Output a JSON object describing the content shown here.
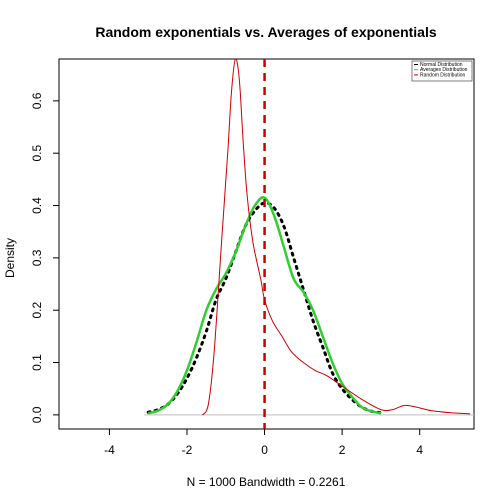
{
  "chart_data": {
    "type": "line",
    "title": "Random exponentials vs. Averages of exponentials",
    "xlabel": "N = 1000   Bandwidth = 0.2261",
    "ylabel": "Density",
    "xlim": [
      -5.3,
      5.4
    ],
    "ylim": [
      -0.027,
      0.68
    ],
    "xticks": [
      "-4",
      "-2",
      "0",
      "2",
      "4"
    ],
    "xtick_values": [
      -4,
      -2,
      0,
      2,
      4
    ],
    "yticks": [
      "0.0",
      "0.1",
      "0.2",
      "0.3",
      "0.4",
      "0.5",
      "0.6"
    ],
    "ytick_values": [
      0,
      0.1,
      0.2,
      0.3,
      0.4,
      0.5,
      0.6
    ],
    "legend_position": "top-right",
    "legend": [
      {
        "label": "Normal Distribution",
        "color": "#000000"
      },
      {
        "label": "Averages Distribution",
        "color": "#32cd32"
      },
      {
        "label": "Random Distribution",
        "color": "#cc0000"
      }
    ],
    "vline": {
      "x": 0,
      "color": "#cc0000",
      "style": "dashed"
    },
    "series": [
      {
        "color": "#000000",
        "style": "dotted",
        "x": [
          -3.0,
          -2.75,
          -2.5,
          -2.25,
          -2.0,
          -1.75,
          -1.5,
          -1.25,
          -1.0,
          -0.75,
          -0.5,
          -0.25,
          0.0,
          0.25,
          0.5,
          0.75,
          1.0,
          1.25,
          1.5,
          1.75,
          2.0,
          2.25,
          2.5,
          2.75,
          3.0
        ],
        "y": [
          0.005,
          0.01,
          0.02,
          0.04,
          0.07,
          0.11,
          0.16,
          0.22,
          0.26,
          0.31,
          0.36,
          0.39,
          0.405,
          0.395,
          0.36,
          0.3,
          0.24,
          0.18,
          0.13,
          0.08,
          0.05,
          0.03,
          0.015,
          0.007,
          0.004
        ]
      },
      {
        "color": "#32cd32",
        "style": "solid",
        "x": [
          -3.0,
          -2.75,
          -2.5,
          -2.25,
          -2.0,
          -1.75,
          -1.5,
          -1.25,
          -1.0,
          -0.75,
          -0.5,
          -0.25,
          0.0,
          0.25,
          0.5,
          0.75,
          1.0,
          1.25,
          1.5,
          1.75,
          2.0,
          2.25,
          2.5,
          2.75,
          3.0
        ],
        "y": [
          0.003,
          0.008,
          0.02,
          0.045,
          0.085,
          0.14,
          0.2,
          0.24,
          0.27,
          0.31,
          0.36,
          0.4,
          0.415,
          0.38,
          0.32,
          0.26,
          0.235,
          0.2,
          0.15,
          0.1,
          0.06,
          0.035,
          0.015,
          0.007,
          0.003
        ]
      },
      {
        "color": "#cc0000",
        "style": "solid",
        "x": [
          -1.6,
          -1.45,
          -1.3,
          -1.1,
          -0.95,
          -0.85,
          -0.75,
          -0.65,
          -0.55,
          -0.45,
          -0.3,
          -0.1,
          0.0,
          0.2,
          0.45,
          0.7,
          1.0,
          1.3,
          1.6,
          2.0,
          2.5,
          3.0,
          3.3,
          3.6,
          3.9,
          4.3,
          4.8,
          5.3
        ],
        "y": [
          0.0,
          0.02,
          0.12,
          0.34,
          0.5,
          0.62,
          0.68,
          0.64,
          0.52,
          0.42,
          0.33,
          0.26,
          0.22,
          0.18,
          0.15,
          0.12,
          0.1,
          0.085,
          0.075,
          0.055,
          0.03,
          0.01,
          0.01,
          0.018,
          0.015,
          0.008,
          0.004,
          0.002
        ]
      }
    ]
  }
}
